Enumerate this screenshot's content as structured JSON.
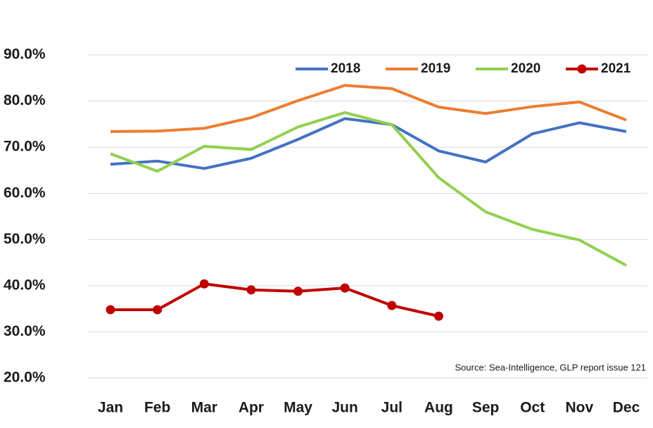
{
  "chart_data": {
    "type": "line",
    "categories": [
      "Jan",
      "Feb",
      "Mar",
      "Apr",
      "May",
      "Jun",
      "Jul",
      "Aug",
      "Sep",
      "Oct",
      "Nov",
      "Dec"
    ],
    "series": [
      {
        "name": "2018",
        "color": "#4472c4",
        "values": [
          66.3,
          67,
          65.4,
          67.6,
          71.7,
          76.2,
          74.9,
          69.2,
          66.8,
          72.9,
          75.3,
          73.4
        ]
      },
      {
        "name": "2019",
        "color": "#ed7d31",
        "values": [
          73.4,
          73.5,
          74.1,
          76.4,
          80.1,
          83.4,
          82.7,
          78.7,
          77.3,
          78.8,
          79.8,
          75.9
        ]
      },
      {
        "name": "2020",
        "color": "#92d050",
        "values": [
          68.6,
          64.8,
          70.2,
          69.5,
          74.4,
          77.5,
          74.9,
          63.4,
          56,
          52.2,
          49.9,
          44.4
        ]
      },
      {
        "name": "2021",
        "color": "#c00000",
        "values": [
          34.8,
          34.8,
          40.4,
          39.1,
          38.8,
          39.5,
          35.7,
          33.4,
          null,
          null,
          null,
          null
        ],
        "markers": true
      }
    ],
    "ylim": [
      20,
      90
    ],
    "yticks": [
      {
        "value": 20,
        "label": "20.0%"
      },
      {
        "value": 30,
        "label": "30.0%"
      },
      {
        "value": 40,
        "label": "40.0%"
      },
      {
        "value": 50,
        "label": "50.0%"
      },
      {
        "value": 60,
        "label": "60.0%"
      },
      {
        "value": 70,
        "label": "70.0%"
      },
      {
        "value": 80,
        "label": "80.0%"
      },
      {
        "value": 90,
        "label": "90.0%"
      }
    ],
    "grid": true,
    "legend": "top",
    "annotation": "Source: Sea-Intelligence, GLP report issue 121"
  }
}
